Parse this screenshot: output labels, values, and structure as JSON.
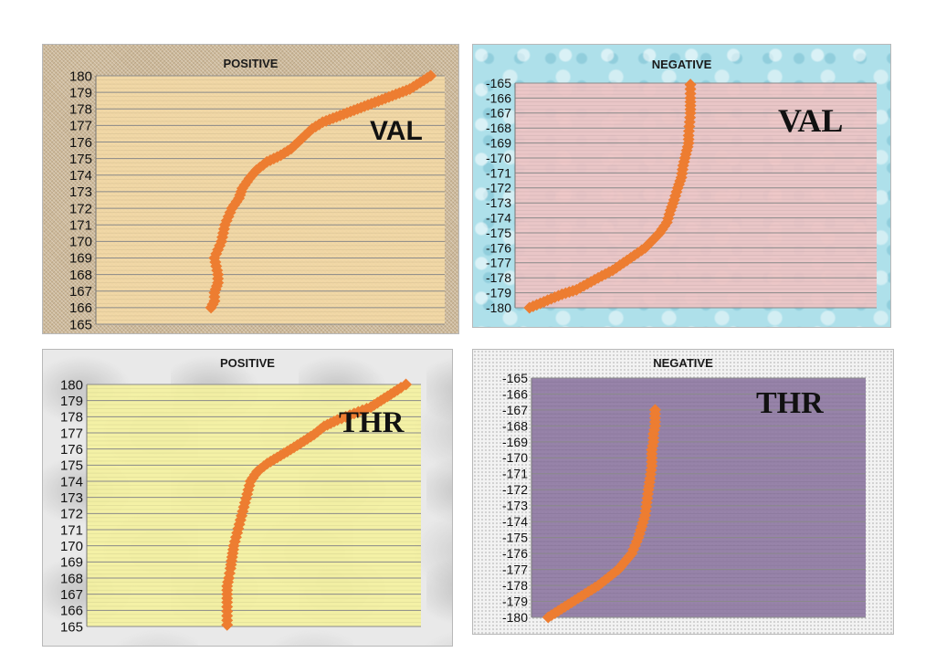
{
  "chart_data": [
    {
      "type": "scatter",
      "title": "POSITIVE",
      "label": "VAL",
      "ylim": [
        165,
        180
      ],
      "yticks": [
        180,
        179,
        178,
        177,
        176,
        175,
        174,
        173,
        172,
        171,
        170,
        169,
        168,
        167,
        166,
        165
      ],
      "grid": true,
      "marker_color": "#ed7d31",
      "plot_bg": "#f3d9a6",
      "points": [
        [
          0.33,
          166
        ],
        [
          0.34,
          166.4
        ],
        [
          0.34,
          166.9
        ],
        [
          0.35,
          167.5
        ],
        [
          0.35,
          168
        ],
        [
          0.34,
          169
        ],
        [
          0.35,
          169.5
        ],
        [
          0.36,
          170
        ],
        [
          0.365,
          170.5
        ],
        [
          0.37,
          171
        ],
        [
          0.38,
          171.5
        ],
        [
          0.39,
          172
        ],
        [
          0.41,
          172.6
        ],
        [
          0.42,
          173.2
        ],
        [
          0.44,
          173.8
        ],
        [
          0.46,
          174.3
        ],
        [
          0.49,
          174.8
        ],
        [
          0.53,
          175.2
        ],
        [
          0.56,
          175.6
        ],
        [
          0.58,
          176
        ],
        [
          0.6,
          176.4
        ],
        [
          0.62,
          176.8
        ],
        [
          0.65,
          177.2
        ],
        [
          0.7,
          177.6
        ],
        [
          0.75,
          178
        ],
        [
          0.8,
          178.4
        ],
        [
          0.85,
          178.8
        ],
        [
          0.9,
          179.2
        ],
        [
          0.93,
          179.6
        ],
        [
          0.96,
          180
        ]
      ]
    },
    {
      "type": "scatter",
      "title": "NEGATIVE",
      "label": "VAL",
      "ylim": [
        -180,
        -165
      ],
      "yticks": [
        -165,
        -166,
        -167,
        -168,
        -169,
        -170,
        -171,
        -172,
        -173,
        -174,
        -175,
        -176,
        -177,
        -178,
        -179,
        -180
      ],
      "grid": true,
      "marker_color": "#ed7d31",
      "plot_bg": "#eec3c3",
      "points": [
        [
          0.04,
          -180
        ],
        [
          0.07,
          -179.7
        ],
        [
          0.1,
          -179.4
        ],
        [
          0.13,
          -179.1
        ],
        [
          0.17,
          -178.8
        ],
        [
          0.2,
          -178.4
        ],
        [
          0.23,
          -178
        ],
        [
          0.27,
          -177.5
        ],
        [
          0.3,
          -177
        ],
        [
          0.33,
          -176.5
        ],
        [
          0.36,
          -176
        ],
        [
          0.38,
          -175.5
        ],
        [
          0.4,
          -175
        ],
        [
          0.42,
          -174.3
        ],
        [
          0.43,
          -173.5
        ],
        [
          0.44,
          -172.8
        ],
        [
          0.45,
          -172
        ],
        [
          0.46,
          -171.3
        ],
        [
          0.465,
          -170.5
        ],
        [
          0.47,
          -170
        ],
        [
          0.475,
          -169.5
        ],
        [
          0.48,
          -169
        ],
        [
          0.48,
          -168.5
        ],
        [
          0.485,
          -167
        ],
        [
          0.485,
          -166.5
        ],
        [
          0.485,
          -166
        ],
        [
          0.485,
          -165.1
        ]
      ]
    },
    {
      "type": "scatter",
      "title": "POSITIVE",
      "label": "THR",
      "ylim": [
        165,
        180
      ],
      "yticks": [
        180,
        179,
        178,
        177,
        176,
        175,
        174,
        173,
        172,
        171,
        170,
        169,
        168,
        167,
        166,
        165
      ],
      "grid": true,
      "marker_color": "#ed7d31",
      "plot_bg": "#f4f1a0",
      "points": [
        [
          0.42,
          165.1
        ],
        [
          0.42,
          166.5
        ],
        [
          0.42,
          167
        ],
        [
          0.42,
          167.5
        ],
        [
          0.425,
          168
        ],
        [
          0.43,
          168.6
        ],
        [
          0.435,
          169.3
        ],
        [
          0.44,
          170
        ],
        [
          0.45,
          170.8
        ],
        [
          0.46,
          171.6
        ],
        [
          0.47,
          172.4
        ],
        [
          0.48,
          173.2
        ],
        [
          0.49,
          174
        ],
        [
          0.51,
          174.6
        ],
        [
          0.54,
          175.1
        ],
        [
          0.58,
          175.6
        ],
        [
          0.62,
          176.1
        ],
        [
          0.65,
          176.5
        ],
        [
          0.68,
          176.9
        ],
        [
          0.71,
          177.4
        ],
        [
          0.75,
          177.8
        ],
        [
          0.8,
          178.2
        ],
        [
          0.85,
          178.6
        ],
        [
          0.88,
          179
        ],
        [
          0.91,
          179.4
        ],
        [
          0.94,
          179.8
        ],
        [
          0.955,
          180
        ]
      ]
    },
    {
      "type": "scatter",
      "title": "NEGATIVE",
      "label": "THR",
      "ylim": [
        -180,
        -165
      ],
      "yticks": [
        -165,
        -166,
        -167,
        -168,
        -169,
        -170,
        -171,
        -172,
        -173,
        -174,
        -175,
        -176,
        -177,
        -178,
        -179,
        -180
      ],
      "grid": true,
      "marker_color": "#ed7d31",
      "plot_bg": "#8f7aa3",
      "points": [
        [
          0.05,
          -180
        ],
        [
          0.08,
          -179.6
        ],
        [
          0.11,
          -179.2
        ],
        [
          0.14,
          -178.8
        ],
        [
          0.17,
          -178.4
        ],
        [
          0.2,
          -178
        ],
        [
          0.23,
          -177.5
        ],
        [
          0.26,
          -177
        ],
        [
          0.28,
          -176.5
        ],
        [
          0.3,
          -176
        ],
        [
          0.31,
          -175.5
        ],
        [
          0.32,
          -175
        ],
        [
          0.33,
          -174.3
        ],
        [
          0.34,
          -173.6
        ],
        [
          0.345,
          -172.8
        ],
        [
          0.35,
          -172
        ],
        [
          0.355,
          -171.3
        ],
        [
          0.36,
          -170.5
        ],
        [
          0.36,
          -170
        ],
        [
          0.36,
          -169.5
        ],
        [
          0.365,
          -169
        ],
        [
          0.365,
          -168.5
        ],
        [
          0.37,
          -168
        ],
        [
          0.37,
          -167
        ]
      ]
    }
  ]
}
